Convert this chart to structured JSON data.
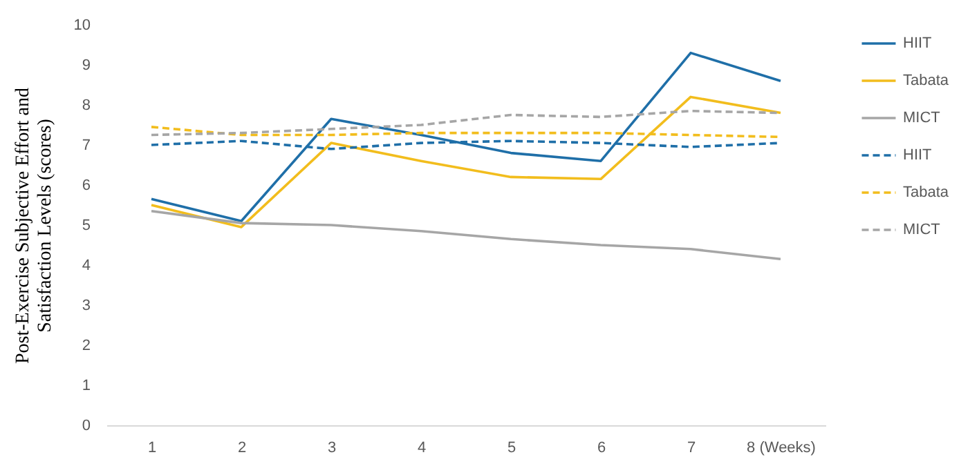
{
  "chart_data": {
    "type": "line",
    "ylabel": "Post-Exercise Subjective Effort and\nSatisfaction Levels (scores)",
    "categories": [
      "1",
      "2",
      "3",
      "4",
      "5",
      "6",
      "7",
      "8 (Weeks)"
    ],
    "ylim": [
      0,
      10
    ],
    "yticks": [
      0,
      1,
      2,
      3,
      4,
      5,
      6,
      7,
      8,
      9,
      10
    ],
    "grid": false,
    "legend": "right",
    "marker": "none",
    "series": [
      {
        "name": "HIIT",
        "color": "#1f6fa8",
        "line_style": "solid",
        "values": [
          5.65,
          5.1,
          7.65,
          7.25,
          6.8,
          6.6,
          9.3,
          8.6
        ]
      },
      {
        "name": "Tabata",
        "color": "#f2bd1d",
        "line_style": "solid",
        "values": [
          5.5,
          4.95,
          7.05,
          6.6,
          6.2,
          6.15,
          8.2,
          7.8
        ]
      },
      {
        "name": "MICT",
        "color": "#a6a6a6",
        "line_style": "solid",
        "values": [
          5.35,
          5.05,
          5.0,
          4.85,
          4.65,
          4.5,
          4.4,
          4.15
        ]
      },
      {
        "name": "HIIT",
        "color": "#1f6fa8",
        "line_style": "dashed",
        "values": [
          7.0,
          7.1,
          6.9,
          7.05,
          7.1,
          7.05,
          6.95,
          7.05
        ]
      },
      {
        "name": "Tabata",
        "color": "#f2bd1d",
        "line_style": "dashed",
        "values": [
          7.45,
          7.25,
          7.25,
          7.3,
          7.3,
          7.3,
          7.25,
          7.2
        ]
      },
      {
        "name": "MICT",
        "color": "#a6a6a6",
        "line_style": "dashed",
        "values": [
          7.25,
          7.3,
          7.4,
          7.5,
          7.75,
          7.7,
          7.85,
          7.8
        ]
      }
    ]
  }
}
